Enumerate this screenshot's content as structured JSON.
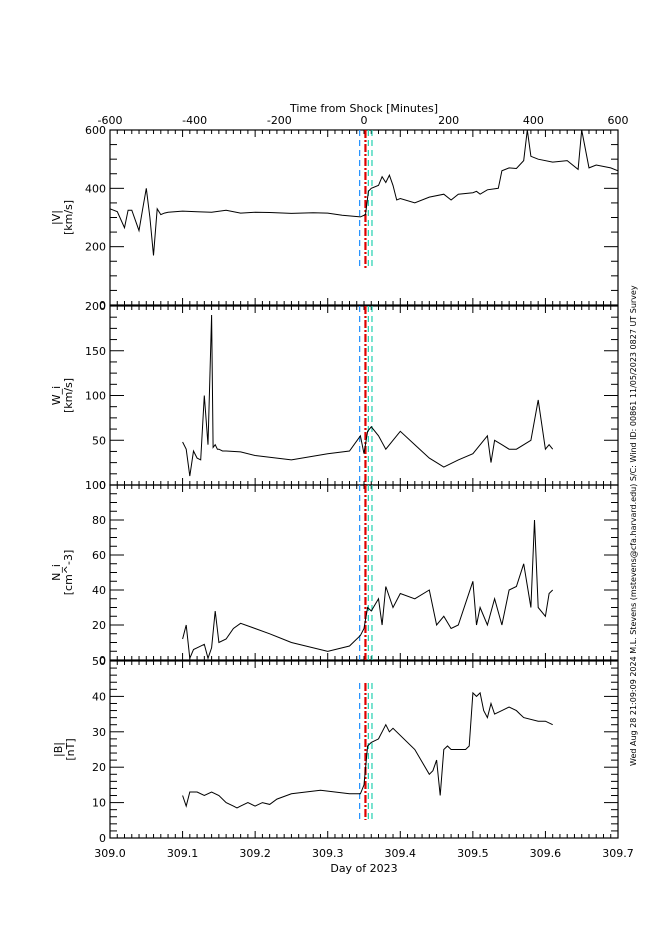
{
  "chart_data": {
    "type": "line",
    "title": "",
    "top_axis": {
      "label": "Time from Shock [Minutes]",
      "ticks": [
        -600,
        -400,
        -200,
        0,
        200,
        400,
        600
      ],
      "range": [
        -600,
        600
      ]
    },
    "xlabel": "Day of 2023",
    "x_ticks": [
      "309.0",
      "309.1",
      "309.2",
      "309.3",
      "309.4",
      "309.5",
      "309.6",
      "309.7"
    ],
    "xlim": [
      309.0,
      309.7
    ],
    "shock_marker": {
      "day": 309.352,
      "color": "#e00000",
      "style": "dash-dot"
    },
    "upstream_marker": {
      "day": 309.344,
      "color": "#1e90ff",
      "style": "dashed"
    },
    "downstream_markers": [
      {
        "day": 309.356,
        "color": "#20d0b0"
      },
      {
        "day": 309.361,
        "color": "#20d0b0"
      }
    ],
    "side_text": "Wed Aug 28 21:09:09 2024  M.L. Stevens (mstevens@cfa.harvard.edu)  S/C: Wind ID: 00861 11/05/2023  0827 UT Survey",
    "panels": [
      {
        "ylabel": "|V|",
        "yunit": "[km/s]",
        "ylim": [
          0,
          600
        ],
        "yticks": [
          "0",
          "200",
          "400",
          "600"
        ],
        "x": [
          309.0,
          309.01,
          309.02,
          309.025,
          309.03,
          309.04,
          309.045,
          309.05,
          309.055,
          309.06,
          309.065,
          309.07,
          309.075,
          309.08,
          309.1,
          309.12,
          309.14,
          309.16,
          309.18,
          309.2,
          309.22,
          309.25,
          309.28,
          309.3,
          309.32,
          309.345,
          309.352,
          309.356,
          309.36,
          309.37,
          309.375,
          309.38,
          309.385,
          309.39,
          309.395,
          309.4,
          309.42,
          309.44,
          309.46,
          309.47,
          309.48,
          309.5,
          309.505,
          309.51,
          309.52,
          309.535,
          309.54,
          309.55,
          309.56,
          309.57,
          309.575,
          309.58,
          309.59,
          309.61,
          309.63,
          309.645,
          309.65,
          309.66,
          309.67,
          309.69,
          309.7
        ],
        "y": [
          330,
          320,
          265,
          325,
          325,
          255,
          330,
          400,
          300,
          170,
          330,
          310,
          315,
          318,
          322,
          320,
          318,
          325,
          315,
          318,
          317,
          314,
          316,
          315,
          308,
          302,
          310,
          390,
          400,
          410,
          440,
          420,
          445,
          410,
          360,
          365,
          350,
          370,
          380,
          360,
          380,
          385,
          390,
          380,
          395,
          400,
          460,
          470,
          468,
          495,
          600,
          510,
          500,
          490,
          495,
          465,
          600,
          470,
          480,
          470,
          460
        ]
      },
      {
        "ylabel": "W_i",
        "yunit": "[km/s]",
        "ylim": [
          0,
          200
        ],
        "yticks": [
          "0",
          "50",
          "100",
          "150",
          "200"
        ],
        "x": [
          309.1,
          309.105,
          309.11,
          309.115,
          309.12,
          309.125,
          309.13,
          309.135,
          309.14,
          309.142,
          309.145,
          309.148,
          309.15,
          309.155,
          309.16,
          309.18,
          309.2,
          309.25,
          309.3,
          309.33,
          309.345,
          309.35,
          309.355,
          309.36,
          309.37,
          309.38,
          309.39,
          309.4,
          309.42,
          309.44,
          309.45,
          309.46,
          309.48,
          309.5,
          309.52,
          309.525,
          309.53,
          309.54,
          309.55,
          309.56,
          309.58,
          309.59,
          309.6,
          309.605,
          309.61
        ],
        "y": [
          48,
          40,
          10,
          38,
          30,
          28,
          100,
          45,
          190,
          42,
          45,
          40,
          40,
          38,
          38,
          37,
          33,
          28,
          35,
          38,
          55,
          35,
          60,
          65,
          55,
          40,
          50,
          60,
          45,
          30,
          25,
          20,
          28,
          35,
          55,
          25,
          50,
          45,
          40,
          40,
          50,
          95,
          40,
          45,
          40
        ]
      },
      {
        "ylabel": "N_i",
        "yunit": "[cm^-3]",
        "ylim": [
          0,
          100
        ],
        "yticks": [
          "0",
          "20",
          "40",
          "60",
          "80",
          "100"
        ],
        "x": [
          309.1,
          309.105,
          309.11,
          309.115,
          309.12,
          309.13,
          309.135,
          309.14,
          309.145,
          309.15,
          309.16,
          309.17,
          309.18,
          309.2,
          309.22,
          309.25,
          309.3,
          309.33,
          309.345,
          309.35,
          309.355,
          309.36,
          309.37,
          309.375,
          309.38,
          309.39,
          309.4,
          309.42,
          309.44,
          309.45,
          309.46,
          309.47,
          309.48,
          309.5,
          309.505,
          309.51,
          309.52,
          309.53,
          309.54,
          309.55,
          309.56,
          309.57,
          309.58,
          309.585,
          309.59,
          309.6,
          309.605,
          309.61
        ],
        "y": [
          12,
          20,
          1,
          6,
          7,
          9,
          1,
          7,
          28,
          10,
          12,
          18,
          21,
          18,
          15,
          10,
          5,
          8,
          14,
          18,
          30,
          28,
          35,
          20,
          42,
          30,
          38,
          35,
          40,
          20,
          25,
          18,
          20,
          45,
          20,
          30,
          20,
          35,
          20,
          40,
          42,
          55,
          30,
          80,
          30,
          25,
          38,
          40
        ]
      },
      {
        "ylabel": "|B|",
        "yunit": "[nT]",
        "ylim": [
          0,
          50
        ],
        "yticks": [
          "0",
          "10",
          "20",
          "30",
          "40",
          "50"
        ],
        "x": [
          309.1,
          309.105,
          309.11,
          309.12,
          309.13,
          309.14,
          309.15,
          309.16,
          309.17,
          309.175,
          309.18,
          309.19,
          309.2,
          309.21,
          309.22,
          309.23,
          309.25,
          309.27,
          309.29,
          309.31,
          309.33,
          309.345,
          309.35,
          309.355,
          309.36,
          309.37,
          309.38,
          309.385,
          309.39,
          309.42,
          309.44,
          309.445,
          309.45,
          309.455,
          309.46,
          309.465,
          309.47,
          309.48,
          309.49,
          309.495,
          309.5,
          309.505,
          309.51,
          309.515,
          309.52,
          309.525,
          309.53,
          309.54,
          309.55,
          309.56,
          309.565,
          309.57,
          309.59,
          309.6,
          309.61
        ],
        "y": [
          12,
          9,
          13,
          13,
          12,
          13,
          12,
          10,
          9,
          8.5,
          9,
          10,
          9,
          10,
          9.5,
          11,
          12.5,
          13,
          13.5,
          13,
          12.5,
          12.5,
          15,
          26,
          27,
          28,
          32,
          30,
          31,
          25,
          18,
          19,
          22,
          12,
          25,
          26,
          25,
          25,
          25,
          26,
          41,
          40,
          41,
          36,
          34,
          38,
          35,
          36,
          37,
          36,
          35,
          34,
          33,
          33,
          32
        ]
      }
    ]
  },
  "labels": {
    "top_axis_title": "Time from Shock [Minutes]",
    "x_axis_title": "Day of 2023",
    "side_text": "Wed Aug 28 21:09:09 2024  M.L. Stevens (mstevens@cfa.harvard.edu)  S/C: Wind ID: 00861 11/05/2023  0827 UT Survey"
  }
}
